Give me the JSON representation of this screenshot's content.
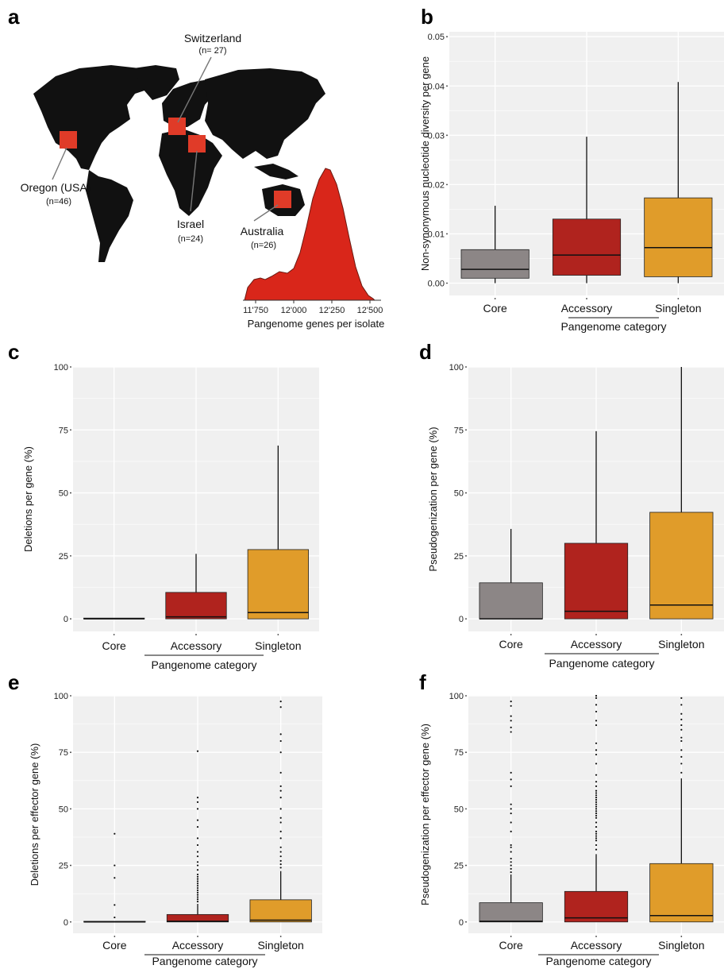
{
  "figure": {
    "letters": [
      "a",
      "b",
      "c",
      "d",
      "e",
      "f"
    ]
  },
  "map_panel": {
    "land_color": "#111111",
    "marker_color": "#e03b28",
    "sites": [
      {
        "name": "Switzerland",
        "n": "(n= 27)"
      },
      {
        "name": "Oregon (USA)",
        "n": "(n=46)"
      },
      {
        "name": "Israel",
        "n": "(n=24)"
      },
      {
        "name": "Australia",
        "n": "(n=26)"
      }
    ],
    "density": {
      "xlabel": "Pangenome genes per isolate",
      "ticks": [
        "11'750",
        "12'000",
        "12'250",
        "12'500"
      ],
      "fill": "#d9261a"
    }
  },
  "colors": {
    "Core": "#8c8686",
    "Accessory": "#b0231e",
    "Singleton": "#e09c2a",
    "panel_bg": "#f0f0f0"
  },
  "chart_data": [
    {
      "panel": "b",
      "type": "box",
      "categories": [
        "Core",
        "Accessory",
        "Singleton"
      ],
      "xlabel": "Pangenome category",
      "ylabel": "Non-synonymous nucleotide diversity per gene",
      "ylim": [
        -0.0025,
        0.051
      ],
      "yticks": [
        0.0,
        0.01,
        0.02,
        0.03,
        0.04,
        0.05
      ],
      "ytick_labels": [
        "0.00",
        "0.01",
        "0.02",
        "0.03",
        "0.04",
        "0.05"
      ],
      "boxes": [
        {
          "q1": 0.001,
          "median": 0.0028,
          "q3": 0.0068,
          "whislo": 0.0,
          "whishi": 0.0157,
          "outliers": []
        },
        {
          "q1": 0.0016,
          "median": 0.0057,
          "q3": 0.013,
          "whislo": 0.0,
          "whishi": 0.0297,
          "outliers": []
        },
        {
          "q1": 0.0013,
          "median": 0.0072,
          "q3": 0.0173,
          "whislo": 0.0,
          "whishi": 0.0408,
          "outliers": []
        }
      ]
    },
    {
      "panel": "c",
      "type": "box",
      "categories": [
        "Core",
        "Accessory",
        "Singleton"
      ],
      "xlabel": "Pangenome category",
      "ylabel": "Deletions per gene (%)",
      "ylim": [
        -5,
        100
      ],
      "yticks": [
        0,
        25,
        50,
        75,
        100
      ],
      "ytick_labels": [
        "0",
        "25",
        "50",
        "75",
        "100"
      ],
      "boxes": [
        {
          "q1": 0,
          "median": 0,
          "q3": 0.3,
          "whislo": 0,
          "whishi": 0.3,
          "outliers": []
        },
        {
          "q1": 0,
          "median": 0.8,
          "q3": 10.5,
          "whislo": 0,
          "whishi": 25.8,
          "outliers": []
        },
        {
          "q1": 0,
          "median": 2.5,
          "q3": 27.5,
          "whislo": 0,
          "whishi": 68.8,
          "outliers": []
        }
      ]
    },
    {
      "panel": "d",
      "type": "box",
      "categories": [
        "Core",
        "Accessory",
        "Singleton"
      ],
      "xlabel": "Pangenome category",
      "ylabel": "Pseudogenization per gene (%)",
      "ylim": [
        -5,
        100
      ],
      "yticks": [
        0,
        25,
        50,
        75,
        100
      ],
      "ytick_labels": [
        "0",
        "25",
        "50",
        "75",
        "100"
      ],
      "boxes": [
        {
          "q1": 0,
          "median": 0,
          "q3": 14.3,
          "whislo": 0,
          "whishi": 35.7,
          "outliers": []
        },
        {
          "q1": 0,
          "median": 3.0,
          "q3": 30.0,
          "whislo": 0,
          "whishi": 74.5,
          "outliers": []
        },
        {
          "q1": 0,
          "median": 5.5,
          "q3": 42.3,
          "whislo": 0,
          "whishi": 100,
          "outliers": []
        }
      ]
    },
    {
      "panel": "e",
      "type": "box",
      "categories": [
        "Core",
        "Accessory",
        "Singleton"
      ],
      "xlabel": "Pangenome category",
      "ylabel": "Deletions per effector gene (%)",
      "ylim": [
        -5,
        100
      ],
      "yticks": [
        0,
        25,
        50,
        75,
        100
      ],
      "ytick_labels": [
        "0",
        "25",
        "50",
        "75",
        "100"
      ],
      "boxes": [
        {
          "q1": 0,
          "median": 0,
          "q3": 0.3,
          "whislo": 0,
          "whishi": 0.3,
          "outliers": [
            2.0,
            7.5,
            19.5,
            25.0,
            39.0
          ]
        },
        {
          "q1": 0,
          "median": 0.3,
          "q3": 3.3,
          "whislo": 0,
          "whishi": 8.0,
          "outliers": [
            9.0,
            10.0,
            11.0,
            12.0,
            13.0,
            14.0,
            15.0,
            16.0,
            17.0,
            18.0,
            19.0,
            20.0,
            21.0,
            23.0,
            25.0,
            26.5,
            29.0,
            31.0,
            34.0,
            37.0,
            42.0,
            45.0,
            50.0,
            53.0,
            55.0,
            75.5
          ]
        },
        {
          "q1": 0,
          "median": 0.8,
          "q3": 9.8,
          "whislo": 0,
          "whishi": 22.5,
          "outliers": [
            24.0,
            25.5,
            27.0,
            29.0,
            31.0,
            33.0,
            37.0,
            40.0,
            44.0,
            46.0,
            50.0,
            55.0,
            58.0,
            60.0,
            66.0,
            75.0,
            80.0,
            83.0,
            95.0,
            97.5
          ]
        }
      ]
    },
    {
      "panel": "f",
      "type": "box",
      "categories": [
        "Core",
        "Accessory",
        "Singleton"
      ],
      "xlabel": "Pangenome category",
      "ylabel": "Pseudogenization per effector gene (%)",
      "ylim": [
        -5,
        100
      ],
      "yticks": [
        0,
        25,
        50,
        75,
        100
      ],
      "ytick_labels": [
        "0",
        "25",
        "50",
        "75",
        "100"
      ],
      "boxes": [
        {
          "q1": 0,
          "median": 0.3,
          "q3": 8.5,
          "whislo": 0,
          "whishi": 21.0,
          "outliers": [
            22.0,
            23.5,
            25.0,
            26.5,
            28.0,
            31.0,
            33.0,
            34.0,
            40.0,
            44.0,
            48.0,
            50.0,
            52.0,
            60.0,
            63.0,
            66.0,
            84.0,
            86.0,
            89.0,
            91.0,
            95.5,
            97.5
          ]
        },
        {
          "q1": 0,
          "median": 1.8,
          "q3": 13.5,
          "whislo": 0,
          "whishi": 30.0,
          "outliers": [
            32.0,
            34.0,
            36.0,
            37.0,
            38.0,
            39.0,
            40.0,
            42.0,
            44.0,
            46.0,
            47.0,
            48.0,
            49.0,
            50.0,
            51.0,
            52.0,
            53.0,
            54.0,
            55.0,
            56.0,
            57.0,
            58.0,
            60.0,
            62.0,
            65.0,
            70.0,
            74.0,
            76.0,
            79.0,
            87.0,
            89.0,
            93.0,
            96.0,
            99.0,
            100.0
          ]
        },
        {
          "q1": 0,
          "median": 2.8,
          "q3": 25.8,
          "whislo": 0,
          "whishi": 63.5,
          "outliers": [
            66.0,
            70.0,
            73.0,
            76.0,
            80.0,
            81.5,
            85.0,
            87.0,
            89.5,
            92.0,
            96.0,
            99.0
          ]
        }
      ]
    }
  ]
}
